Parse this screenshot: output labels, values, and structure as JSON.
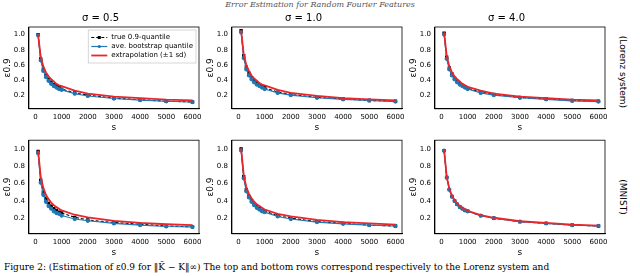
{
  "header": "Error Estimation for Random Fourier Features",
  "caption": "Figure 2: (Estimation of ε0.9 for ‖K̃ − K‖∞) The top and bottom rows correspond respectively to the Lorenz system and",
  "chart_data": [
    {
      "type": "line",
      "title": "σ = 0.5",
      "x_label": "s",
      "y_label": "ε0.9",
      "legend": "upper right",
      "grid": false,
      "xlim": [
        -250,
        6250
      ],
      "xticks": [
        0,
        1000,
        2000,
        3000,
        4000,
        5000,
        6000
      ],
      "ylim": [
        0.02,
        1.1
      ],
      "yticks": [
        0.2,
        0.4,
        0.6,
        0.8,
        {
          "value": 1,
          "label": "1.0"
        }
      ],
      "x": [
        100,
        200,
        300,
        400,
        500,
        600,
        700,
        800,
        900,
        1000,
        1500,
        2000,
        3000,
        4000,
        5000,
        6000
      ],
      "series": [
        {
          "name": "true 0.9-quantile",
          "color": "#000000",
          "marker": "square",
          "line_style": "dashed",
          "values": [
            1.0,
            0.68,
            0.54,
            0.46,
            0.41,
            0.37,
            0.34,
            0.32,
            0.3,
            0.28,
            0.23,
            0.2,
            0.16,
            0.14,
            0.12,
            0.11
          ]
        },
        {
          "name": "ave. bootstrap quantile",
          "color": "#1f77b4",
          "marker": "circle",
          "line_style": "solid",
          "values": [
            0.99,
            0.66,
            0.52,
            0.44,
            0.39,
            0.35,
            0.32,
            0.3,
            0.28,
            0.27,
            0.22,
            0.19,
            0.155,
            0.135,
            0.12,
            0.11
          ]
        },
        {
          "name": "extrapolation (±1 sd)",
          "color": "#e8262b",
          "marker": "none",
          "line_style": "solid",
          "values": [
            1.0,
            0.71,
            0.58,
            0.5,
            0.45,
            0.41,
            0.38,
            0.35,
            0.33,
            0.32,
            0.26,
            0.22,
            0.18,
            0.16,
            0.14,
            0.13
          ]
        }
      ]
    },
    {
      "type": "line",
      "title": "σ = 1.0",
      "x_label": "s",
      "y_label": "ε0.9",
      "grid": false,
      "xlim": [
        -250,
        6250
      ],
      "xticks": [
        0,
        1000,
        2000,
        3000,
        4000,
        5000,
        6000
      ],
      "ylim": [
        0.02,
        1.1
      ],
      "yticks": [
        0.2,
        0.4,
        0.6,
        0.8,
        {
          "value": 1,
          "label": "1.0"
        }
      ],
      "x": [
        100,
        200,
        300,
        400,
        500,
        600,
        700,
        800,
        900,
        1000,
        1500,
        2000,
        3000,
        4000,
        5000,
        6000
      ],
      "series": [
        {
          "name": "true 0.9-quantile",
          "color": "#000000",
          "marker": "square",
          "line_style": "dashed",
          "values": [
            1.05,
            0.72,
            0.57,
            0.49,
            0.43,
            0.39,
            0.36,
            0.34,
            0.32,
            0.3,
            0.24,
            0.21,
            0.17,
            0.15,
            0.13,
            0.12
          ]
        },
        {
          "name": "ave. bootstrap quantile",
          "color": "#1f77b4",
          "marker": "circle",
          "line_style": "solid",
          "values": [
            1.03,
            0.69,
            0.54,
            0.46,
            0.41,
            0.37,
            0.34,
            0.32,
            0.3,
            0.28,
            0.23,
            0.2,
            0.165,
            0.145,
            0.13,
            0.115
          ]
        },
        {
          "name": "extrapolation (±1 sd)",
          "color": "#e8262b",
          "marker": "none",
          "line_style": "solid",
          "values": [
            1.06,
            0.74,
            0.6,
            0.52,
            0.46,
            0.42,
            0.39,
            0.36,
            0.34,
            0.33,
            0.27,
            0.23,
            0.19,
            0.16,
            0.145,
            0.13
          ]
        }
      ]
    },
    {
      "type": "line",
      "title": "σ = 4.0",
      "x_label": "s",
      "y_label": "ε0.9",
      "annotation": "(Lorenz system)",
      "grid": false,
      "xlim": [
        -250,
        6250
      ],
      "xticks": [
        0,
        1000,
        2000,
        3000,
        4000,
        5000,
        6000
      ],
      "ylim": [
        0.02,
        1.1
      ],
      "yticks": [
        0.2,
        0.4,
        0.6,
        0.8,
        {
          "value": 1,
          "label": "1.0"
        }
      ],
      "x": [
        100,
        200,
        300,
        400,
        500,
        600,
        700,
        800,
        900,
        1000,
        1500,
        2000,
        3000,
        4000,
        5000,
        6000
      ],
      "series": [
        {
          "name": "true 0.9-quantile",
          "color": "#000000",
          "marker": "square",
          "line_style": "dashed",
          "values": [
            1.02,
            0.7,
            0.56,
            0.48,
            0.42,
            0.38,
            0.35,
            0.33,
            0.31,
            0.29,
            0.24,
            0.21,
            0.17,
            0.15,
            0.13,
            0.12
          ]
        },
        {
          "name": "ave. bootstrap quantile",
          "color": "#1f77b4",
          "marker": "circle",
          "line_style": "solid",
          "values": [
            1.0,
            0.68,
            0.54,
            0.46,
            0.41,
            0.37,
            0.34,
            0.32,
            0.3,
            0.28,
            0.23,
            0.2,
            0.165,
            0.145,
            0.125,
            0.115
          ]
        },
        {
          "name": "extrapolation (±1 sd)",
          "color": "#e8262b",
          "marker": "none",
          "line_style": "solid",
          "values": [
            1.03,
            0.72,
            0.58,
            0.5,
            0.45,
            0.41,
            0.38,
            0.35,
            0.33,
            0.31,
            0.26,
            0.22,
            0.18,
            0.16,
            0.14,
            0.13
          ]
        }
      ]
    },
    {
      "type": "line",
      "title": "",
      "x_label": "s",
      "y_label": "ε0.9",
      "grid": false,
      "xlim": [
        -250,
        6250
      ],
      "xticks": [
        0,
        1000,
        2000,
        3000,
        4000,
        5000,
        6000
      ],
      "ylim": [
        0.02,
        1.1
      ],
      "yticks": [
        0.2,
        0.4,
        0.6,
        0.8,
        {
          "value": 1,
          "label": "1.0"
        }
      ],
      "x": [
        100,
        200,
        300,
        400,
        500,
        600,
        700,
        800,
        900,
        1000,
        1500,
        2000,
        3000,
        4000,
        5000,
        6000
      ],
      "series": [
        {
          "name": "true 0.9-quantile",
          "color": "#000000",
          "marker": "square",
          "line_style": "dashed",
          "values": [
            0.97,
            0.64,
            0.5,
            0.42,
            0.37,
            0.34,
            0.31,
            0.29,
            0.27,
            0.26,
            0.21,
            0.18,
            0.15,
            0.13,
            0.11,
            0.1
          ]
        },
        {
          "name": "ave. bootstrap quantile",
          "color": "#1f77b4",
          "marker": "circle",
          "line_style": "solid",
          "values": [
            0.95,
            0.61,
            0.47,
            0.39,
            0.34,
            0.31,
            0.28,
            0.26,
            0.25,
            0.23,
            0.19,
            0.17,
            0.14,
            0.12,
            0.105,
            0.1
          ]
        },
        {
          "name": "extrapolation (±1 sd)",
          "color": "#e8262b",
          "marker": "none",
          "line_style": "solid",
          "values": [
            0.98,
            0.68,
            0.55,
            0.47,
            0.42,
            0.38,
            0.35,
            0.33,
            0.31,
            0.29,
            0.24,
            0.21,
            0.17,
            0.145,
            0.13,
            0.12
          ]
        }
      ]
    },
    {
      "type": "line",
      "title": "",
      "x_label": "s",
      "y_label": "ε0.9",
      "grid": false,
      "xlim": [
        -250,
        6250
      ],
      "xticks": [
        0,
        1000,
        2000,
        3000,
        4000,
        5000,
        6000
      ],
      "ylim": [
        0.02,
        1.1
      ],
      "yticks": [
        0.2,
        0.4,
        0.6,
        0.8,
        {
          "value": 1,
          "label": "1.0"
        }
      ],
      "x": [
        100,
        200,
        300,
        400,
        500,
        600,
        700,
        800,
        900,
        1000,
        1500,
        2000,
        3000,
        4000,
        5000,
        6000
      ],
      "series": [
        {
          "name": "true 0.9-quantile",
          "color": "#000000",
          "marker": "square",
          "line_style": "dashed",
          "values": [
            1.0,
            0.68,
            0.53,
            0.45,
            0.4,
            0.36,
            0.33,
            0.31,
            0.29,
            0.28,
            0.23,
            0.2,
            0.16,
            0.14,
            0.12,
            0.11
          ]
        },
        {
          "name": "ave. bootstrap quantile",
          "color": "#1f77b4",
          "marker": "circle",
          "line_style": "solid",
          "values": [
            0.98,
            0.66,
            0.51,
            0.44,
            0.39,
            0.35,
            0.32,
            0.3,
            0.28,
            0.27,
            0.22,
            0.19,
            0.155,
            0.135,
            0.12,
            0.11
          ]
        },
        {
          "name": "extrapolation (±1 sd)",
          "color": "#e8262b",
          "marker": "none",
          "line_style": "solid",
          "values": [
            1.01,
            0.7,
            0.56,
            0.48,
            0.43,
            0.39,
            0.36,
            0.34,
            0.32,
            0.3,
            0.25,
            0.22,
            0.18,
            0.155,
            0.14,
            0.125
          ]
        }
      ]
    },
    {
      "type": "line",
      "title": "",
      "x_label": "s",
      "y_label": "ε0.9",
      "annotation": "(MNIST)",
      "grid": false,
      "xlim": [
        -250,
        6250
      ],
      "xticks": [
        0,
        1000,
        2000,
        3000,
        4000,
        5000,
        6000
      ],
      "ylim": [
        0.02,
        1.1
      ],
      "yticks": [
        0.2,
        0.4,
        0.6,
        0.8,
        {
          "value": 1,
          "label": "1.0"
        }
      ],
      "x": [
        100,
        200,
        300,
        400,
        500,
        600,
        700,
        800,
        900,
        1000,
        1500,
        2000,
        3000,
        4000,
        5000,
        6000
      ],
      "series": [
        {
          "name": "true 0.9-quantile",
          "color": "#000000",
          "marker": "square",
          "line_style": "dashed",
          "values": [
            0.98,
            0.67,
            0.53,
            0.45,
            0.4,
            0.36,
            0.33,
            0.31,
            0.29,
            0.28,
            0.23,
            0.2,
            0.16,
            0.14,
            0.12,
            0.11
          ]
        },
        {
          "name": "ave. bootstrap quantile",
          "color": "#1f77b4",
          "marker": "circle",
          "line_style": "solid",
          "values": [
            0.98,
            0.67,
            0.53,
            0.45,
            0.4,
            0.36,
            0.33,
            0.31,
            0.29,
            0.28,
            0.23,
            0.2,
            0.16,
            0.14,
            0.12,
            0.11
          ]
        },
        {
          "name": "extrapolation (±1 sd)",
          "color": "#e8262b",
          "marker": "none",
          "line_style": "solid",
          "values": [
            0.99,
            0.68,
            0.54,
            0.46,
            0.41,
            0.37,
            0.34,
            0.32,
            0.3,
            0.285,
            0.235,
            0.205,
            0.165,
            0.145,
            0.125,
            0.115
          ]
        }
      ]
    }
  ]
}
